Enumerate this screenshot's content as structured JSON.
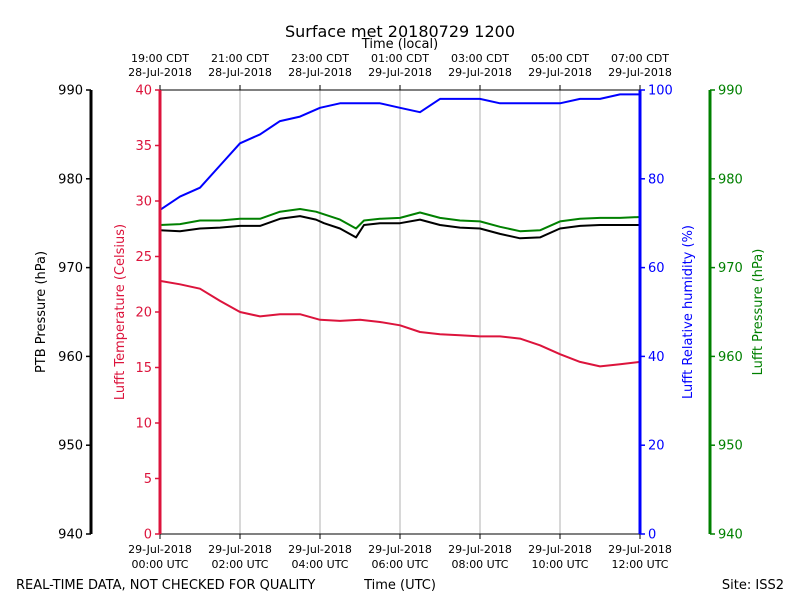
{
  "chart_data": {
    "type": "line",
    "title": "Surface met 20180729 1200",
    "top_axis_label": "Time (local)",
    "xlabel": "Time (UTC)",
    "footer_left": "REAL-TIME DATA, NOT CHECKED FOR QUALITY",
    "footer_right": "Site: ISS2",
    "x_hours_range": [
      0,
      12
    ],
    "grid_vertical": true,
    "bottom_ticks": [
      {
        "hour": 0,
        "line1": "29-Jul-2018",
        "line2": "00:00 UTC"
      },
      {
        "hour": 2,
        "line1": "29-Jul-2018",
        "line2": "02:00 UTC"
      },
      {
        "hour": 4,
        "line1": "29-Jul-2018",
        "line2": "04:00 UTC"
      },
      {
        "hour": 6,
        "line1": "29-Jul-2018",
        "line2": "06:00 UTC"
      },
      {
        "hour": 8,
        "line1": "29-Jul-2018",
        "line2": "08:00 UTC"
      },
      {
        "hour": 10,
        "line1": "29-Jul-2018",
        "line2": "10:00 UTC"
      },
      {
        "hour": 12,
        "line1": "29-Jul-2018",
        "line2": "12:00 UTC"
      }
    ],
    "top_ticks": [
      {
        "hour": 0,
        "line1": "19:00 CDT",
        "line2": "28-Jul-2018"
      },
      {
        "hour": 2,
        "line1": "21:00 CDT",
        "line2": "28-Jul-2018"
      },
      {
        "hour": 4,
        "line1": "23:00 CDT",
        "line2": "28-Jul-2018"
      },
      {
        "hour": 6,
        "line1": "01:00 CDT",
        "line2": "29-Jul-2018"
      },
      {
        "hour": 8,
        "line1": "03:00 CDT",
        "line2": "29-Jul-2018"
      },
      {
        "hour": 10,
        "line1": "05:00 CDT",
        "line2": "29-Jul-2018"
      },
      {
        "hour": 12,
        "line1": "07:00 CDT",
        "line2": "29-Jul-2018"
      }
    ],
    "axes": [
      {
        "id": "ptb",
        "label": "PTB Pressure (hPa)",
        "color": "#000000",
        "range": [
          940,
          990
        ],
        "ticks": [
          940,
          950,
          960,
          970,
          980,
          990
        ],
        "side": "left-outer"
      },
      {
        "id": "temp",
        "label": "Lufft Temperature (Celsius)",
        "color": "#dc143c",
        "range": [
          0,
          40
        ],
        "ticks": [
          0,
          5,
          10,
          15,
          20,
          25,
          30,
          35,
          40
        ],
        "side": "left-inner"
      },
      {
        "id": "rh",
        "label": "Lufft Relative humidity (%)",
        "color": "#0000ff",
        "range": [
          0,
          100
        ],
        "ticks": [
          0,
          20,
          40,
          60,
          80,
          100
        ],
        "side": "right-inner"
      },
      {
        "id": "lp",
        "label": "Lufft Pressure (hPa)",
        "color": "#008000",
        "range": [
          940,
          990
        ],
        "ticks": [
          940,
          950,
          960,
          970,
          980,
          990
        ],
        "side": "right-outer"
      }
    ],
    "series": [
      {
        "name": "Lufft Temperature",
        "axis": "temp",
        "color": "#dc143c",
        "x": [
          0,
          0.5,
          1.0,
          1.5,
          2.0,
          2.5,
          3.0,
          3.5,
          4.0,
          4.5,
          5.0,
          5.5,
          6.0,
          6.5,
          7.0,
          7.5,
          8.0,
          8.5,
          9.0,
          9.5,
          10.0,
          10.5,
          11.0,
          11.5,
          12.0
        ],
        "values": [
          22.8,
          22.5,
          22.1,
          21.0,
          20.0,
          19.6,
          19.8,
          19.8,
          19.3,
          19.2,
          19.3,
          19.1,
          18.8,
          18.2,
          18.0,
          17.9,
          17.8,
          17.8,
          17.6,
          17.0,
          16.2,
          15.5,
          15.1,
          15.3,
          15.5
        ]
      },
      {
        "name": "Lufft Relative humidity",
        "axis": "rh",
        "color": "#0000ff",
        "x": [
          0,
          0.5,
          1.0,
          1.5,
          2.0,
          2.5,
          3.0,
          3.5,
          4.0,
          4.5,
          5.0,
          5.5,
          6.0,
          6.5,
          7.0,
          7.5,
          8.0,
          8.5,
          9.0,
          9.5,
          10.0,
          10.5,
          11.0,
          11.5,
          12.0
        ],
        "values": [
          73,
          76,
          78,
          83,
          88,
          90,
          93,
          94,
          96,
          97,
          97,
          97,
          96,
          95,
          98,
          98,
          98,
          97,
          97,
          97,
          97,
          98,
          98,
          99,
          99
        ]
      },
      {
        "name": "PTB Pressure",
        "axis": "ptb",
        "color": "#000000",
        "x": [
          0,
          0.5,
          1.0,
          1.5,
          2.0,
          2.5,
          3.0,
          3.5,
          3.9,
          4.1,
          4.5,
          4.9,
          5.1,
          5.5,
          6.0,
          6.5,
          7.0,
          7.5,
          8.0,
          8.5,
          9.0,
          9.5,
          10.0,
          10.5,
          11.0,
          11.5,
          12.0
        ],
        "values": [
          974.2,
          974.1,
          974.4,
          974.5,
          974.7,
          974.7,
          975.5,
          975.8,
          975.4,
          975.0,
          974.4,
          973.4,
          974.8,
          975.0,
          975.0,
          975.4,
          974.8,
          974.5,
          974.4,
          973.8,
          973.3,
          973.4,
          974.4,
          974.7,
          974.8,
          974.8,
          974.8
        ]
      },
      {
        "name": "Lufft Pressure",
        "axis": "lp",
        "color": "#008000",
        "x": [
          0,
          0.5,
          1.0,
          1.5,
          2.0,
          2.5,
          3.0,
          3.5,
          3.9,
          4.1,
          4.5,
          4.9,
          5.1,
          5.5,
          6.0,
          6.5,
          7.0,
          7.5,
          8.0,
          8.5,
          9.0,
          9.5,
          10.0,
          10.5,
          11.0,
          11.5,
          12.0
        ],
        "values": [
          974.8,
          974.9,
          975.3,
          975.3,
          975.5,
          975.5,
          976.3,
          976.6,
          976.3,
          976.0,
          975.4,
          974.4,
          975.3,
          975.5,
          975.6,
          976.2,
          975.6,
          975.3,
          975.2,
          974.6,
          974.1,
          974.2,
          975.2,
          975.5,
          975.6,
          975.6,
          975.7
        ]
      }
    ]
  }
}
